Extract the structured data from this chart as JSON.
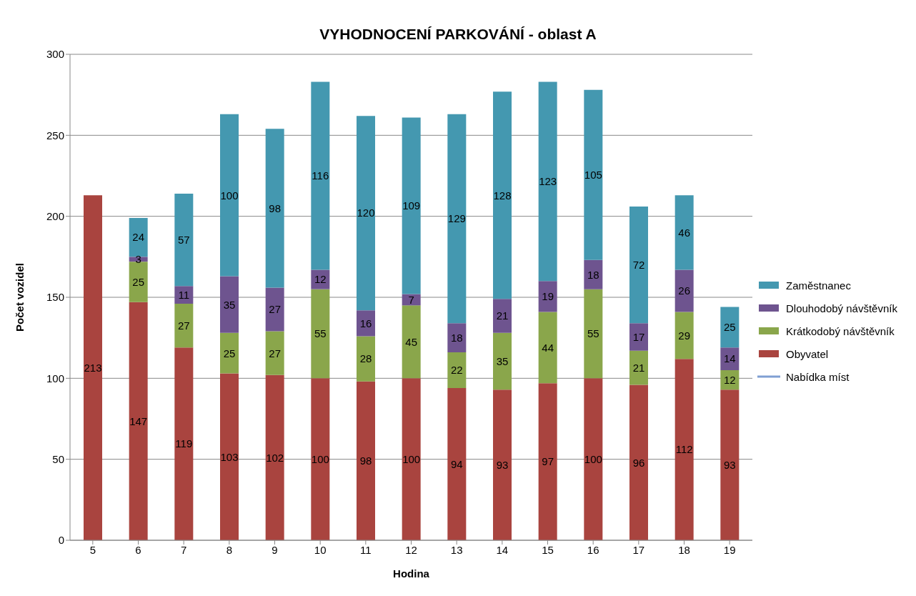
{
  "chart_data": {
    "type": "bar",
    "stacked": true,
    "title": "VYHODNOCENÍ PARKOVÁNÍ - oblast A",
    "xlabel": "Hodina",
    "ylabel": "Počet vozidel",
    "categories": [
      "5",
      "6",
      "7",
      "8",
      "9",
      "10",
      "11",
      "12",
      "13",
      "14",
      "15",
      "16",
      "17",
      "18",
      "19"
    ],
    "series": [
      {
        "name": "Obyvatel",
        "color": "#a9443f",
        "values": [
          213,
          147,
          119,
          103,
          102,
          100,
          98,
          100,
          94,
          93,
          97,
          100,
          96,
          112,
          93
        ]
      },
      {
        "name": "Krátkodobý návštěvník",
        "color": "#8aa64b",
        "values": [
          null,
          25,
          27,
          25,
          27,
          55,
          28,
          45,
          22,
          35,
          44,
          55,
          21,
          29,
          12
        ]
      },
      {
        "name": "Dlouhodobý návštěvník",
        "color": "#6e548f",
        "values": [
          null,
          3,
          11,
          35,
          27,
          12,
          16,
          7,
          18,
          21,
          19,
          18,
          17,
          26,
          14
        ]
      },
      {
        "name": "Zaměstnanec",
        "color": "#4498b0",
        "values": [
          null,
          24,
          57,
          100,
          98,
          116,
          120,
          109,
          129,
          128,
          123,
          105,
          72,
          46,
          25
        ]
      },
      {
        "name": "Nabídka míst",
        "type": "line",
        "color": "#7f9fd3",
        "values": [
          null,
          null,
          null,
          null,
          null,
          null,
          null,
          null,
          null,
          null,
          null,
          null,
          null,
          null,
          null
        ]
      }
    ],
    "ylim": [
      0,
      300
    ],
    "yticks": [
      0,
      50,
      100,
      150,
      200,
      250,
      300
    ],
    "grid": "y",
    "legend": "right",
    "data_labels": true
  }
}
